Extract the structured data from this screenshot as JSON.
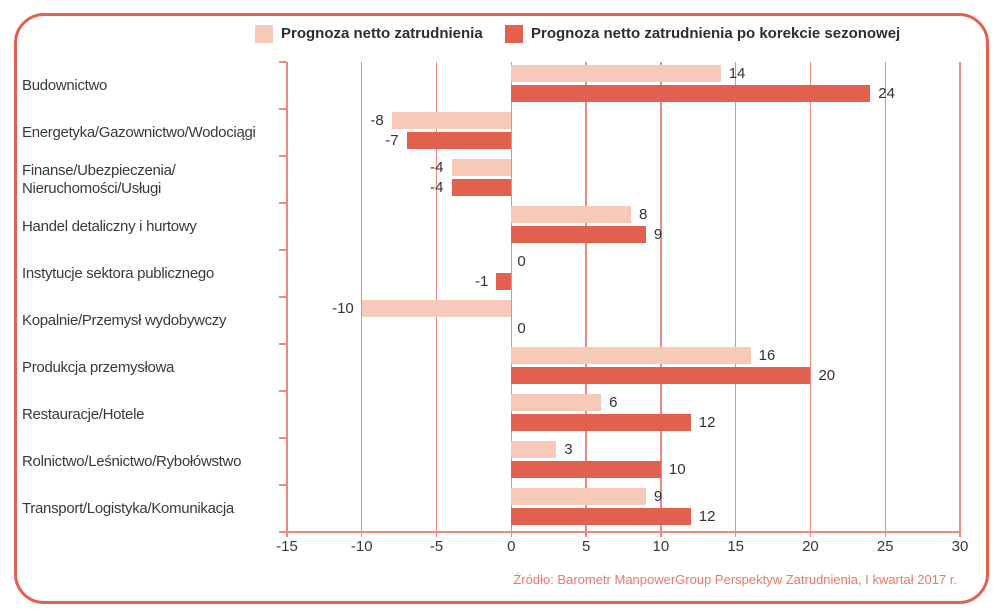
{
  "legend": {
    "items": [
      {
        "label": "Prognoza netto zatrudnienia",
        "color": "#f6c9b8"
      },
      {
        "label": "Prognoza netto zatrudnienia po korekcie sezonowej",
        "color": "#e2604e"
      }
    ]
  },
  "source_note": "Źródło: Barometr ManpowerGroup Perspektyw Zatrudnienia, I kwartał 2017 r.",
  "colors": {
    "light_bar": "#f6c9b8",
    "dark_bar": "#e2604e",
    "gridline": "#ee8a80",
    "border": "#e2614f",
    "text": "#3a3a3a",
    "source_text": "#e8796c"
  },
  "chart_data": {
    "type": "bar",
    "orientation": "horizontal",
    "title": "",
    "categories": [
      "Budownictwo",
      "Energetyka/Gazownictwo/Wodociągi",
      "Finanse/Ubezpieczenia/\nNieruchomości/Usługi",
      "Handel detaliczny i hurtowy",
      "Instytucje sektora publicznego",
      "Kopalnie/Przemysł wydobywczy",
      "Produkcja przemysłowa",
      "Restauracje/Hotele",
      "Rolnictwo/Leśnictwo/Rybołówstwo",
      "Transport/Logistyka/Komunikacja"
    ],
    "series": [
      {
        "name": "Prognoza netto zatrudnienia",
        "color": "#f6c9b8",
        "values": [
          14,
          -8,
          -4,
          8,
          0,
          -10,
          16,
          6,
          3,
          9
        ]
      },
      {
        "name": "Prognoza netto zatrudnienia po korekcie sezonowej",
        "color": "#e2604e",
        "values": [
          24,
          -7,
          -4,
          9,
          -1,
          0,
          20,
          12,
          10,
          12
        ]
      }
    ],
    "x_ticks": [
      -15,
      -10,
      -5,
      0,
      5,
      10,
      15,
      20,
      25,
      30
    ],
    "xlim": [
      -15,
      30
    ],
    "grid": true,
    "legend_position": "top"
  }
}
